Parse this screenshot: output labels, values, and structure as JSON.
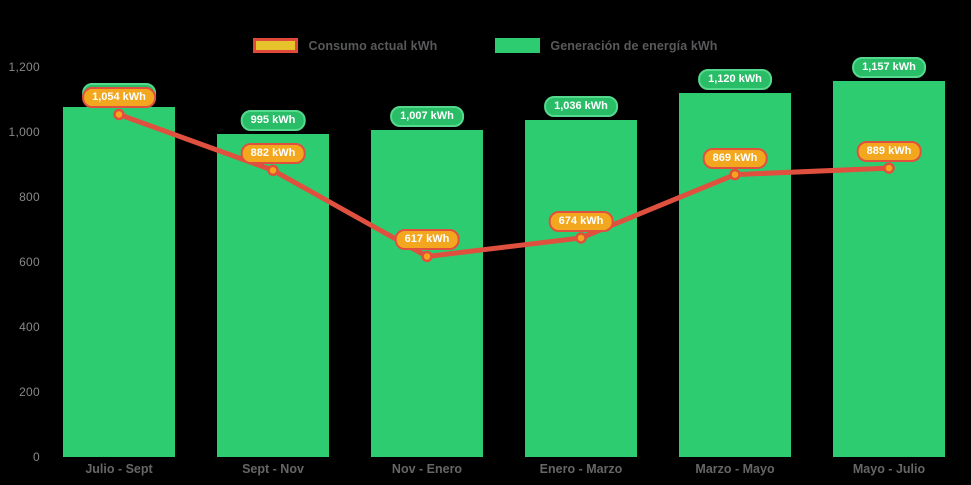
{
  "chart_data": {
    "type": "combo",
    "title": "",
    "categories": [
      "Julio - Sept",
      "Sept - Nov",
      "Nov - Enero",
      "Enero - Marzo",
      "Marzo - Mayo",
      "Mayo - Julio"
    ],
    "series": [
      {
        "name": "Generación de energía kWh",
        "type": "bar",
        "values": [
          1078,
          995,
          1007,
          1036,
          1120,
          1157
        ],
        "labels": [
          "1,078 kWh",
          "995 kWh",
          "1,007 kWh",
          "1,036 kWh",
          "1,120 kWh",
          "1,157 kWh"
        ],
        "color": "#2ecc71",
        "label_fill": "#29bd68",
        "label_border": "#55d98c"
      },
      {
        "name": "Consumo actual kWh",
        "type": "line",
        "values": [
          1054,
          882,
          617,
          674,
          869,
          889
        ],
        "labels": [
          "1,054 kWh",
          "882 kWh",
          "617 kWh",
          "674 kWh",
          "869 kWh",
          "889 kWh"
        ],
        "color": "#e0503f",
        "marker_fill": "#f7a51b",
        "label_fill": "#f2a71e",
        "label_border": "#e0503f"
      }
    ],
    "yticks": [
      "1,200",
      "1,000",
      "800",
      "600",
      "400",
      "200",
      "0"
    ],
    "ytick_values": [
      1200,
      1000,
      800,
      600,
      400,
      200,
      0
    ],
    "ylim": [
      0,
      1200
    ],
    "legend_position": "top",
    "grid": false,
    "background": "#000000"
  }
}
